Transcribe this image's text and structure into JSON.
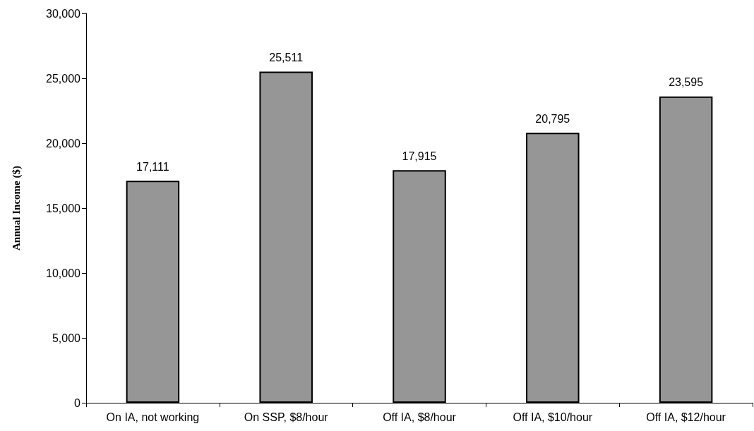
{
  "chart_data": {
    "type": "bar",
    "ylabel": "Annual Income ($)",
    "categories": [
      "On IA, not working",
      "On SSP, $8/hour",
      "Off IA, $8/hour",
      "Off IA, $10/hour",
      "Off IA, $12/hour"
    ],
    "values": [
      17111,
      25511,
      17915,
      20795,
      23595
    ],
    "value_labels": [
      "17,111",
      "25,511",
      "17,915",
      "20,795",
      "23,595"
    ],
    "color": "#969696",
    "ylim": [
      0,
      30000
    ],
    "yticks": [
      0,
      {
        "value": 5000,
        "label": "5,000"
      },
      {
        "value": 10000,
        "label": "10,000"
      },
      {
        "value": 15000,
        "label": "15,000"
      },
      {
        "value": 20000,
        "label": "20,000"
      },
      {
        "value": 25000,
        "label": "25,000"
      },
      {
        "value": 30000,
        "label": "30,000"
      }
    ],
    "grid": false
  }
}
